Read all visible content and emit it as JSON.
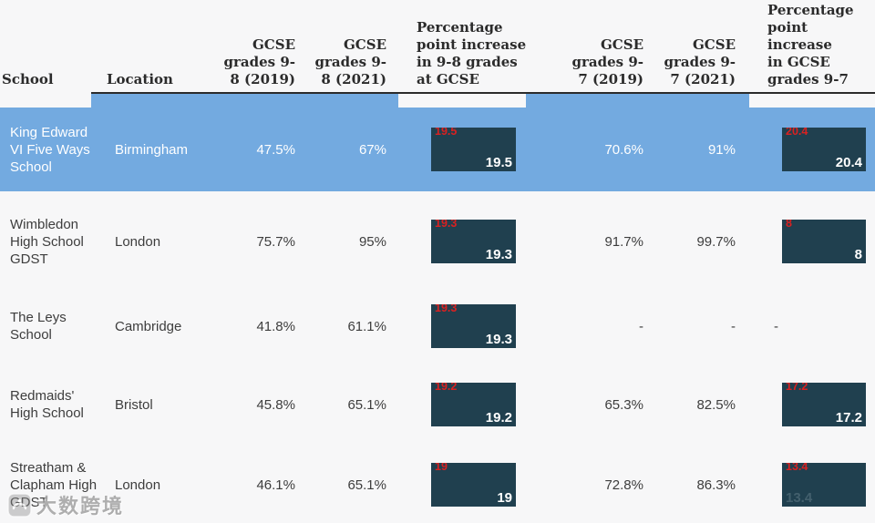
{
  "colors": {
    "highlight_blue": "#73aae0",
    "bar_navy": "#20404f",
    "bar_label_red": "#d92121",
    "header_text": "#2b2b2b",
    "body_text": "#3d3d3d",
    "background": "#f7f7f8"
  },
  "table": {
    "columns": [
      {
        "key": "school",
        "label": "School"
      },
      {
        "key": "location",
        "label": "Location"
      },
      {
        "key": "g98_2019",
        "label": "GCSE\ngrades 9-\n8 (2019)"
      },
      {
        "key": "g98_2021",
        "label": "GCSE\ngrades 9-\n8 (2021)"
      },
      {
        "key": "inc98",
        "label": "Percentage\npoint increase\nin 9-8 grades\nat GCSE"
      },
      {
        "key": "g97_2019",
        "label": "GCSE\ngrades 9-\n7 (2019)"
      },
      {
        "key": "g97_2021",
        "label": "GCSE\ngrades 9-\n7 (2021)"
      },
      {
        "key": "inc97",
        "label": "Percentage\npoint increase\nin GCSE\ngrades 9-7"
      }
    ],
    "rows": [
      {
        "school": "King Edward\nVI Five Ways\nSchool",
        "location": "Birmingham",
        "g98_2019": "47.5%",
        "g98_2021": "67%",
        "inc98": "19.5",
        "g97_2019": "70.6%",
        "g97_2021": "91%",
        "inc97": "20.4",
        "highlight": true,
        "inc97_style": ""
      },
      {
        "school": "Wimbledon\nHigh School\nGDST",
        "location": "London",
        "g98_2019": "75.7%",
        "g98_2021": "95%",
        "inc98": "19.3",
        "g97_2019": "91.7%",
        "g97_2021": "99.7%",
        "inc97": "8",
        "highlight": false,
        "inc97_style": ""
      },
      {
        "school": "The Leys\nSchool",
        "location": "Cambridge",
        "g98_2019": "41.8%",
        "g98_2021": "61.1%",
        "inc98": "19.3",
        "g97_2019": "-",
        "g97_2021": "-",
        "inc97": "-",
        "highlight": false,
        "inc97_style": ""
      },
      {
        "school": "Redmaids'\nHigh School",
        "location": "Bristol",
        "g98_2019": "45.8%",
        "g98_2021": "65.1%",
        "inc98": "19.2",
        "g97_2019": "65.3%",
        "g97_2021": "82.5%",
        "inc97": "17.2",
        "highlight": false,
        "inc97_style": ""
      },
      {
        "school": "Streatham &\nClapham High\nGDST",
        "location": "London",
        "g98_2019": "46.1%",
        "g98_2021": "65.1%",
        "inc98": "19",
        "g97_2019": "72.8%",
        "g97_2021": "86.3%",
        "inc97": "13.4",
        "highlight": false,
        "inc97_style": "faint-left"
      }
    ]
  },
  "chart_data": {
    "type": "table",
    "title": "",
    "columns": [
      "School",
      "Location",
      "GCSE grades 9-8 (2019)",
      "GCSE grades 9-8 (2021)",
      "Percentage point increase in 9-8 grades at GCSE",
      "GCSE grades 9-7 (2019)",
      "GCSE grades 9-7 (2021)",
      "Percentage point increase in GCSE grades 9-7"
    ],
    "bar_columns": [
      "Percentage point increase in 9-8 grades at GCSE",
      "Percentage point increase in GCSE grades 9-7"
    ],
    "highlighted_row": "King Edward VI Five Ways School",
    "rows": [
      [
        "King Edward VI Five Ways School",
        "Birmingham",
        47.5,
        67,
        19.5,
        70.6,
        91,
        20.4
      ],
      [
        "Wimbledon High School GDST",
        "London",
        75.7,
        95,
        19.3,
        91.7,
        99.7,
        8
      ],
      [
        "The Leys School",
        "Cambridge",
        41.8,
        61.1,
        19.3,
        null,
        null,
        null
      ],
      [
        "Redmaids' High School",
        "Bristol",
        45.8,
        65.1,
        19.2,
        65.3,
        82.5,
        17.2
      ],
      [
        "Streatham & Clapham High GDST",
        "London",
        46.1,
        65.1,
        19,
        72.8,
        86.3,
        13.4
      ]
    ]
  },
  "watermark": {
    "text": "大数跨境",
    "icon": "chat-bubble-logo-icon"
  }
}
